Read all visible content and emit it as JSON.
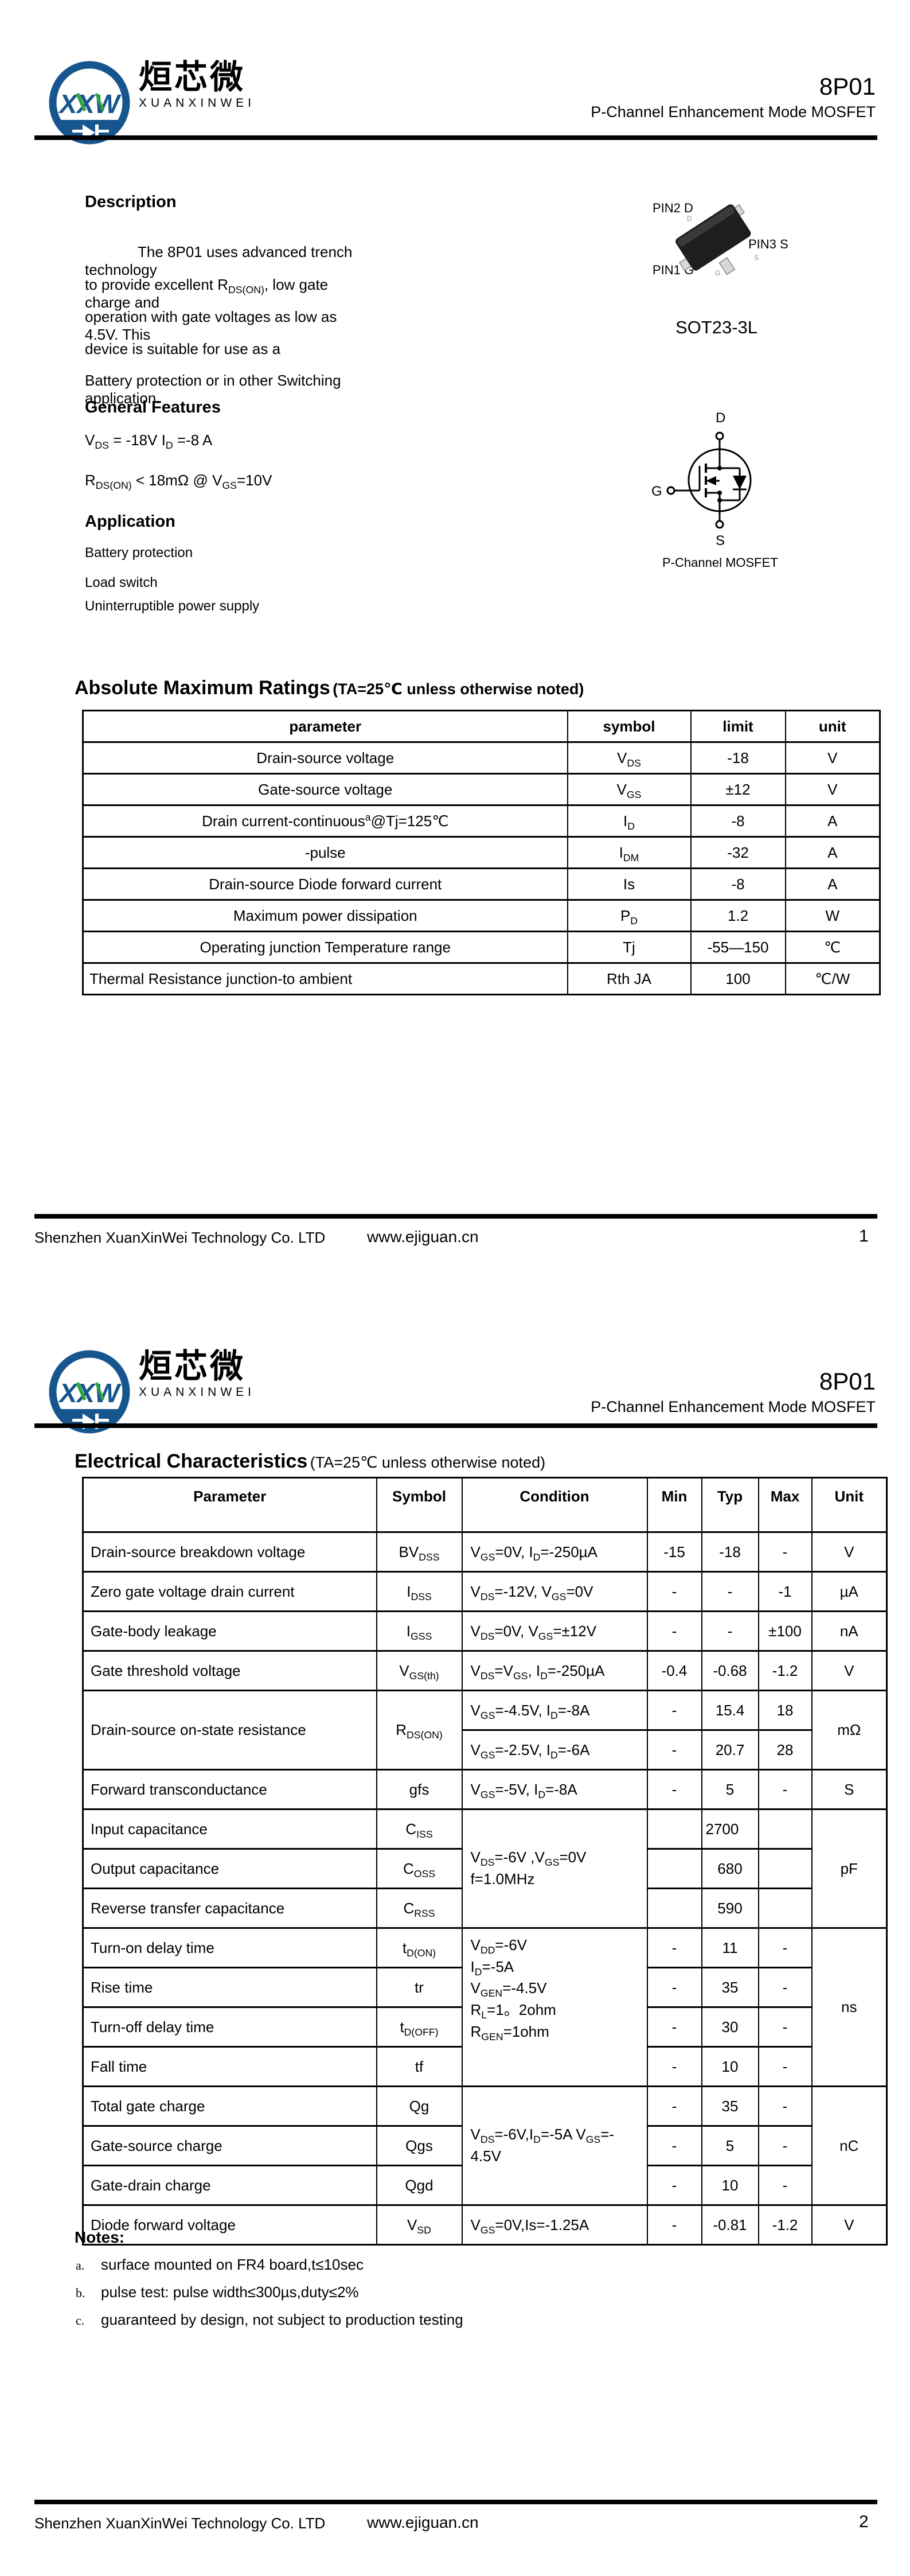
{
  "doc": {
    "company": "Shenzhen XuanXinWei Technology Co. LTD",
    "website": "www.ejiguan.cn"
  },
  "logo": {
    "monogram": "XXW",
    "zh": "烜芯微",
    "en": "XUANXINWEI"
  },
  "header": {
    "part": "8P01",
    "subtitle": "P-Channel Enhancement Mode MOSFET"
  },
  "page1": {
    "description": {
      "title": "Description",
      "lines": [
        "The  8P01  uses advanced trench technology",
        "to provide excellent R_{DS(ON)}, low gate charge and",
        "operation with gate voltages as low as 4.5V. This",
        "device is suitable for use as a",
        "Battery protection or in other Switching application."
      ]
    },
    "package": {
      "pin2": "PIN2 D",
      "pin3": "PIN3 S",
      "pin1": "PIN1 G",
      "lead_d": "D",
      "lead_s": "S",
      "lead_g": "G",
      "name": "SOT23-3L"
    },
    "features": {
      "title": "General Features",
      "line1": "V_{DS} = -18V  I_{D} =-8 A",
      "line2": "R_{DS(ON)} < 18mΩ @ V_{GS}=10V"
    },
    "application": {
      "title": "Application",
      "items": [
        "Battery protection",
        "Load switch",
        "Uninterruptible power supply"
      ]
    },
    "symbol": {
      "d": "D",
      "g": "G",
      "s": "S",
      "caption": "P-Channel MOSFET"
    },
    "amr": {
      "title": "Absolute Maximum Ratings",
      "subtitle": "(TA=25℃ unless otherwise noted)",
      "headers": [
        "parameter",
        "symbol",
        "limit",
        "unit"
      ],
      "rows": [
        {
          "p": "Drain-source voltage",
          "s": "V_{DS}",
          "l": "-18",
          "u": "V"
        },
        {
          "p": "Gate-source voltage",
          "s": "V_{GS}",
          "l": "±12",
          "u": "V"
        },
        {
          "p": "Drain current-continuous^{a}@Tj=125℃",
          "s": "I_{D}",
          "l": "-8",
          "u": "A"
        },
        {
          "p": "-pulse",
          "s": "I_{DM}",
          "l": "-32",
          "u": "A"
        },
        {
          "p": "Drain-source Diode forward current",
          "s": "Is",
          "l": "-8",
          "u": "A"
        },
        {
          "p": "Maximum power dissipation",
          "s": "P_{D}",
          "l": "1.2",
          "u": "W"
        },
        {
          "p": "Operating junction Temperature range",
          "s": "Tj",
          "l": "-55—150",
          "u": "℃"
        },
        {
          "p": "Thermal Resistance junction-to ambient",
          "s": "Rth JA",
          "l": "100",
          "u": "℃/W"
        }
      ]
    },
    "page_number": "1"
  },
  "page2": {
    "ec": {
      "title": "Electrical Characteristics",
      "subtitle": "(TA=25℃ unless otherwise noted)",
      "headers": [
        "Parameter",
        "Symbol",
        "Condition",
        "Min",
        "Typ",
        "Max",
        "Unit"
      ],
      "bvdss": {
        "p": "Drain-source breakdown voltage",
        "s": "BV_{DSS}",
        "c": "V_{GS}=0V, I_{D}=-250µA",
        "min": "-15",
        "typ": "-18",
        "max": "-",
        "u": "V"
      },
      "idss": {
        "p": "Zero gate voltage drain current",
        "s": "I_{DSS}",
        "c": "V_{DS}=-12V, V_{GS}=0V",
        "min": "-",
        "typ": "-",
        "max": "-1",
        "u": "µA"
      },
      "igss": {
        "p": "Gate-body leakage",
        "s": "I_{GSS}",
        "c": "V_{DS}=0V, V_{GS}=±12V",
        "min": "-",
        "typ": "-",
        "max": "±100",
        "u": "nA"
      },
      "vgsth": {
        "p": "Gate threshold voltage",
        "s": "V_{GS(th)}",
        "c": "V_{DS}=V_{GS}, I_{D}=-250µA",
        "min": "-0.4",
        "typ": "-0.68",
        "max": "-1.2",
        "u": "V"
      },
      "rdson": {
        "p": "Drain-source on-state resistance",
        "s": "R_{DS(ON)}",
        "u": "mΩ",
        "c1": "V_{GS}=-4.5V, I_{D}=-8A",
        "min1": "-",
        "typ1": "15.4",
        "max1": "18",
        "c2": "V_{GS}=-2.5V, I_{D}=-6A",
        "min2": "-",
        "typ2": "20.7",
        "max2": "28"
      },
      "gfs": {
        "p": "Forward transconductance",
        "s": "gfs",
        "c": "V_{GS}=-5V, I_{D}=-8A",
        "min": "-",
        "typ": "5",
        "max": "-",
        "u": "S"
      },
      "cap": {
        "cond1": "V_{DS}=-6V ,V_{GS}=0V",
        "cond2": "f=1.0MHz",
        "u": "pF",
        "ciss": {
          "p": "Input capacitance",
          "s": "C_{ISS}",
          "typ": "2700"
        },
        "coss": {
          "p": "Output capacitance",
          "s": "C_{OSS}",
          "typ": "680"
        },
        "crss": {
          "p": "Reverse transfer capacitance",
          "s": "C_{RSS}",
          "typ": "590"
        }
      },
      "sw": {
        "u": "ns",
        "cond": [
          "V_{DD}=-6V",
          "I_{D}=-5A",
          "V_{GEN}=-4.5V",
          "R_{L}=1。2ohm",
          "R_{GEN}=1ohm"
        ],
        "tdon": {
          "p": "Turn-on delay time",
          "s": "t_{D(ON)}",
          "min": "-",
          "typ": "11",
          "max": "-"
        },
        "tr": {
          "p": "Rise time",
          "s": "tr",
          "min": "-",
          "typ": "35",
          "max": "-"
        },
        "tdoff": {
          "p": "Turn-off delay time",
          "s": "t_{D(OFF)}",
          "min": "-",
          "typ": "30",
          "max": "-"
        },
        "tf": {
          "p": "Fall time",
          "s": "tf",
          "min": "-",
          "typ": "10",
          "max": "-"
        }
      },
      "charge": {
        "u": "nC",
        "cond1": "V_{DS}=-6V,I_{D}=-5A V_{GS}=-",
        "cond2": "4.5V",
        "qg": {
          "p": "Total gate charge",
          "s": "Qg",
          "min": "-",
          "typ": "35",
          "max": "-"
        },
        "qgs": {
          "p": "Gate-source charge",
          "s": "Qgs",
          "min": "-",
          "typ": "5",
          "max": "-"
        },
        "qgd": {
          "p": "Gate-drain charge",
          "s": "Qgd",
          "min": "-",
          "typ": "10",
          "max": "-"
        }
      },
      "vsd": {
        "p": "Diode forward voltage",
        "s": "V_{SD}",
        "c": "V_{GS}=0V,Is=-1.25A",
        "min": "-",
        "typ": "-0.81",
        "max": "-1.2",
        "u": "V"
      }
    },
    "notes": {
      "title": "Notes:",
      "items": [
        {
          "m": "a.",
          "t": "surface mounted on FR4 board,t≤10sec"
        },
        {
          "m": "b.",
          "t": "pulse test: pulse width≤300µs,duty≤2%"
        },
        {
          "m": "c.",
          "t": "guaranteed by design, not subject to production testing"
        }
      ]
    },
    "page_number": "2"
  }
}
